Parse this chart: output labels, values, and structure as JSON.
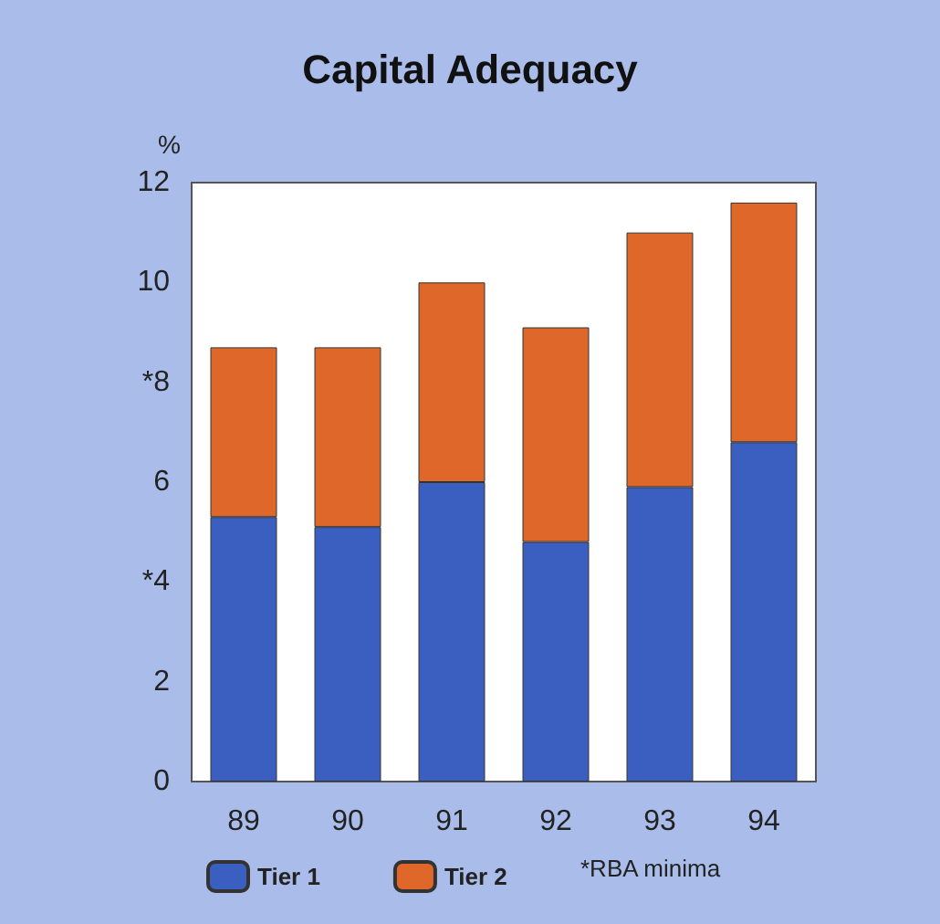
{
  "chart_data": {
    "type": "bar",
    "title": "Capital Adequacy",
    "ylabel": "%",
    "categories": [
      "89",
      "90",
      "91",
      "92",
      "93",
      "94"
    ],
    "series": [
      {
        "name": "Tier 1",
        "color": "#3a5fc0",
        "values": [
          5.3,
          5.1,
          6.0,
          4.8,
          5.9,
          6.8
        ]
      },
      {
        "name": "Tier 2",
        "color": "#e0672a",
        "values": [
          3.4,
          3.6,
          4.0,
          4.3,
          5.1,
          4.8
        ]
      }
    ],
    "stacked": true,
    "ylim": [
      0,
      12
    ],
    "yticks": [
      0,
      2,
      {
        "value": 4,
        "label": "*4"
      },
      6,
      {
        "value": 8,
        "label": "*8"
      },
      10,
      12
    ],
    "grid": false,
    "legend": "bottom",
    "annotations": [
      "*RBA minima"
    ]
  }
}
